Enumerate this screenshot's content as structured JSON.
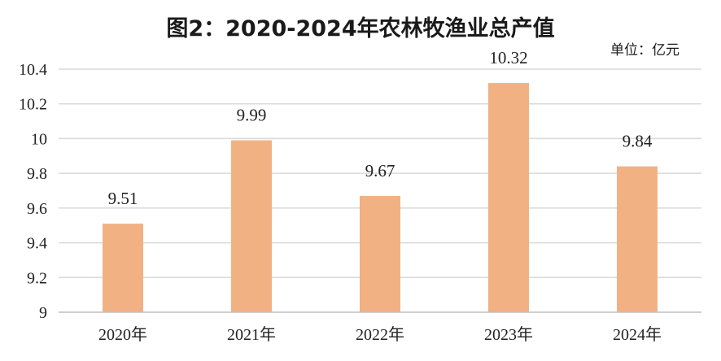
{
  "chart_data": {
    "type": "bar",
    "title": "图2：2020-2024年农林牧渔业总产值",
    "unit": "单位：亿元",
    "categories": [
      "2020年",
      "2021年",
      "2022年",
      "2023年",
      "2024年"
    ],
    "values": [
      9.51,
      9.99,
      9.67,
      10.32,
      9.84
    ],
    "data_labels": [
      "9.51",
      "9.99",
      "9.67",
      "10.32",
      "9.84"
    ],
    "ylim": [
      9,
      10.4
    ],
    "yticks": [
      9,
      9.2,
      9.4,
      9.6,
      9.8,
      10,
      10.2,
      10.4
    ],
    "ytick_labels": [
      "9",
      "9.2",
      "9.4",
      "9.6",
      "9.8",
      "10",
      "10.2",
      "10.4"
    ],
    "grid": true,
    "legend": "none",
    "bar_color": "#F2B183",
    "grid_color": "#D9D9D9",
    "axis_color": "#BFBFBF"
  }
}
